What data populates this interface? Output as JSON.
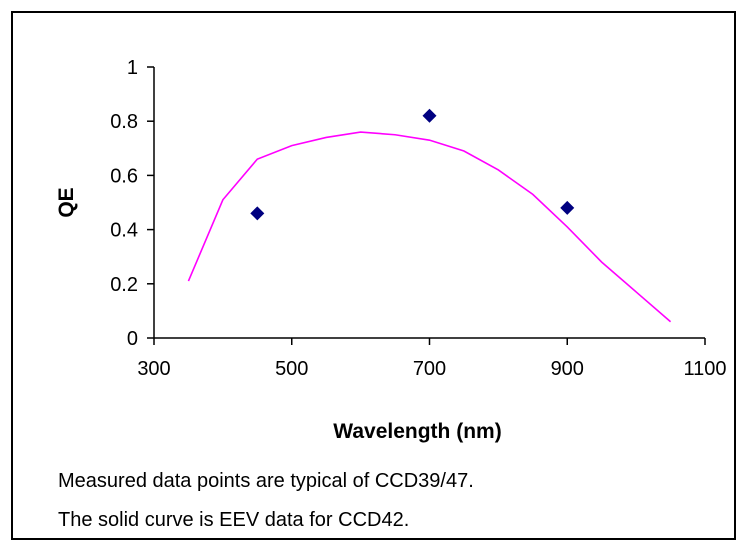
{
  "chart_data": {
    "type": "scatter",
    "xlabel": "Wavelength (nm)",
    "ylabel": "QE",
    "xlim": [
      300,
      1100
    ],
    "ylim": [
      0,
      1
    ],
    "xticks": [
      300,
      500,
      700,
      900,
      1100
    ],
    "yticks": [
      0,
      0.2,
      0.4,
      0.6,
      0.8,
      1
    ],
    "yticklabels": [
      "0",
      "0.2",
      "0.4",
      "0.6",
      "0.8",
      "1"
    ],
    "grid": false,
    "series": [
      {
        "kind": "line",
        "color": "#ff00ff",
        "x": [
          350,
          400,
          450,
          500,
          550,
          600,
          650,
          700,
          750,
          800,
          850,
          900,
          950,
          1000,
          1050
        ],
        "y": [
          0.21,
          0.51,
          0.66,
          0.71,
          0.74,
          0.76,
          0.75,
          0.73,
          0.69,
          0.62,
          0.53,
          0.41,
          0.28,
          0.17,
          0.06
        ]
      },
      {
        "kind": "scatter",
        "color": "#000080",
        "marker": "diamond",
        "x": [
          450,
          700,
          900
        ],
        "y": [
          0.46,
          0.82,
          0.48
        ]
      }
    ]
  },
  "notes": [
    "Measured data points are typical of CCD39/47.",
    "The solid curve is EEV data for CCD42."
  ]
}
